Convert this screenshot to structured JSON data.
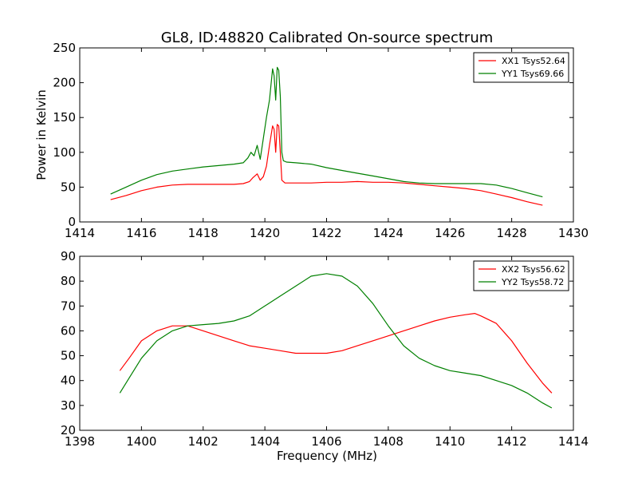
{
  "figure": {
    "title": "GL8, ID:48820 Calibrated On-source spectrum",
    "ylabel": "Power in Kelvin",
    "xlabel": "Frequency (MHz)"
  },
  "colors": {
    "red": "#ff0000",
    "green": "#008000"
  },
  "chart_data": [
    {
      "type": "line",
      "title": "GL8, ID:48820 Calibrated On-source spectrum",
      "xlabel": "",
      "ylabel": "Power in Kelvin",
      "xlim": [
        1414,
        1430
      ],
      "ylim": [
        0,
        250
      ],
      "xticks": [
        1414,
        1416,
        1418,
        1420,
        1422,
        1424,
        1426,
        1428,
        1430
      ],
      "yticks": [
        0,
        50,
        100,
        150,
        200,
        250
      ],
      "grid": false,
      "legend": "top-right",
      "series": [
        {
          "name": "XX1 Tsys52.64",
          "color": "#ff0000",
          "x": [
            1415.0,
            1415.5,
            1416.0,
            1416.5,
            1417.0,
            1417.5,
            1418.0,
            1418.5,
            1419.0,
            1419.3,
            1419.5,
            1419.6,
            1419.75,
            1419.85,
            1419.95,
            1420.05,
            1420.15,
            1420.25,
            1420.3,
            1420.35,
            1420.4,
            1420.45,
            1420.5,
            1420.55,
            1420.65,
            1420.8,
            1421.0,
            1421.5,
            1422.0,
            1422.5,
            1423.0,
            1423.5,
            1424.0,
            1424.5,
            1425.0,
            1425.5,
            1426.0,
            1426.5,
            1427.0,
            1427.5,
            1428.0,
            1428.5,
            1429.0
          ],
          "y": [
            32,
            38,
            45,
            50,
            53,
            54,
            54,
            54,
            54,
            55,
            58,
            63,
            69,
            60,
            65,
            80,
            110,
            138,
            133,
            100,
            140,
            138,
            100,
            60,
            56,
            56,
            56,
            56,
            57,
            57,
            58,
            57,
            57,
            56,
            54,
            52,
            50,
            48,
            45,
            40,
            35,
            29,
            24
          ]
        },
        {
          "name": "YY1 Tsys69.66",
          "color": "#008000",
          "x": [
            1415.0,
            1415.5,
            1416.0,
            1416.5,
            1417.0,
            1417.5,
            1418.0,
            1418.5,
            1419.0,
            1419.3,
            1419.45,
            1419.55,
            1419.65,
            1419.75,
            1419.85,
            1419.95,
            1420.05,
            1420.15,
            1420.25,
            1420.3,
            1420.35,
            1420.4,
            1420.45,
            1420.5,
            1420.55,
            1420.6,
            1420.7,
            1421.0,
            1421.5,
            1422.0,
            1422.5,
            1423.0,
            1423.5,
            1424.0,
            1424.5,
            1425.0,
            1425.5,
            1426.0,
            1426.5,
            1427.0,
            1427.5,
            1428.0,
            1428.5,
            1429.0
          ],
          "y": [
            40,
            50,
            60,
            68,
            73,
            76,
            79,
            81,
            83,
            85,
            92,
            100,
            95,
            110,
            90,
            120,
            150,
            175,
            220,
            210,
            175,
            222,
            218,
            180,
            100,
            88,
            86,
            85,
            83,
            78,
            74,
            70,
            66,
            62,
            58,
            56,
            55,
            55,
            55,
            55,
            53,
            48,
            42,
            36
          ]
        }
      ]
    },
    {
      "type": "line",
      "title": "",
      "xlabel": "Frequency (MHz)",
      "ylabel": "",
      "xlim": [
        1398,
        1414
      ],
      "ylim": [
        20,
        90
      ],
      "xticks": [
        1398,
        1400,
        1402,
        1404,
        1406,
        1408,
        1410,
        1412,
        1414
      ],
      "yticks": [
        20,
        30,
        40,
        50,
        60,
        70,
        80,
        90
      ],
      "grid": false,
      "legend": "top-right",
      "series": [
        {
          "name": "XX2 Tsys56.62",
          "color": "#ff0000",
          "x": [
            1399.3,
            1399.6,
            1400.0,
            1400.5,
            1401.0,
            1401.5,
            1402.0,
            1402.5,
            1403.0,
            1403.5,
            1404.0,
            1404.5,
            1405.0,
            1405.5,
            1406.0,
            1406.5,
            1407.0,
            1407.5,
            1408.0,
            1408.5,
            1409.0,
            1409.5,
            1410.0,
            1410.5,
            1410.8,
            1411.0,
            1411.5,
            1412.0,
            1412.5,
            1413.0,
            1413.3
          ],
          "y": [
            44,
            49,
            56,
            60,
            62,
            62,
            60,
            58,
            56,
            54,
            53,
            52,
            51,
            51,
            51,
            52,
            54,
            56,
            58,
            60,
            62,
            64,
            65.5,
            66.5,
            67,
            66,
            63,
            56,
            47,
            39,
            35
          ]
        },
        {
          "name": "YY2 Tsys58.72",
          "color": "#008000",
          "x": [
            1399.3,
            1399.6,
            1400.0,
            1400.5,
            1401.0,
            1401.5,
            1402.0,
            1402.5,
            1403.0,
            1403.5,
            1404.0,
            1404.5,
            1405.0,
            1405.5,
            1406.0,
            1406.5,
            1407.0,
            1407.5,
            1408.0,
            1408.5,
            1409.0,
            1409.5,
            1410.0,
            1410.5,
            1411.0,
            1411.5,
            1412.0,
            1412.5,
            1413.0,
            1413.3
          ],
          "y": [
            35,
            41,
            49,
            56,
            60,
            62,
            62.5,
            63,
            64,
            66,
            70,
            74,
            78,
            82,
            83,
            82,
            78,
            71,
            62,
            54,
            49,
            46,
            44,
            43,
            42,
            40,
            38,
            35,
            31,
            29
          ]
        }
      ]
    }
  ]
}
